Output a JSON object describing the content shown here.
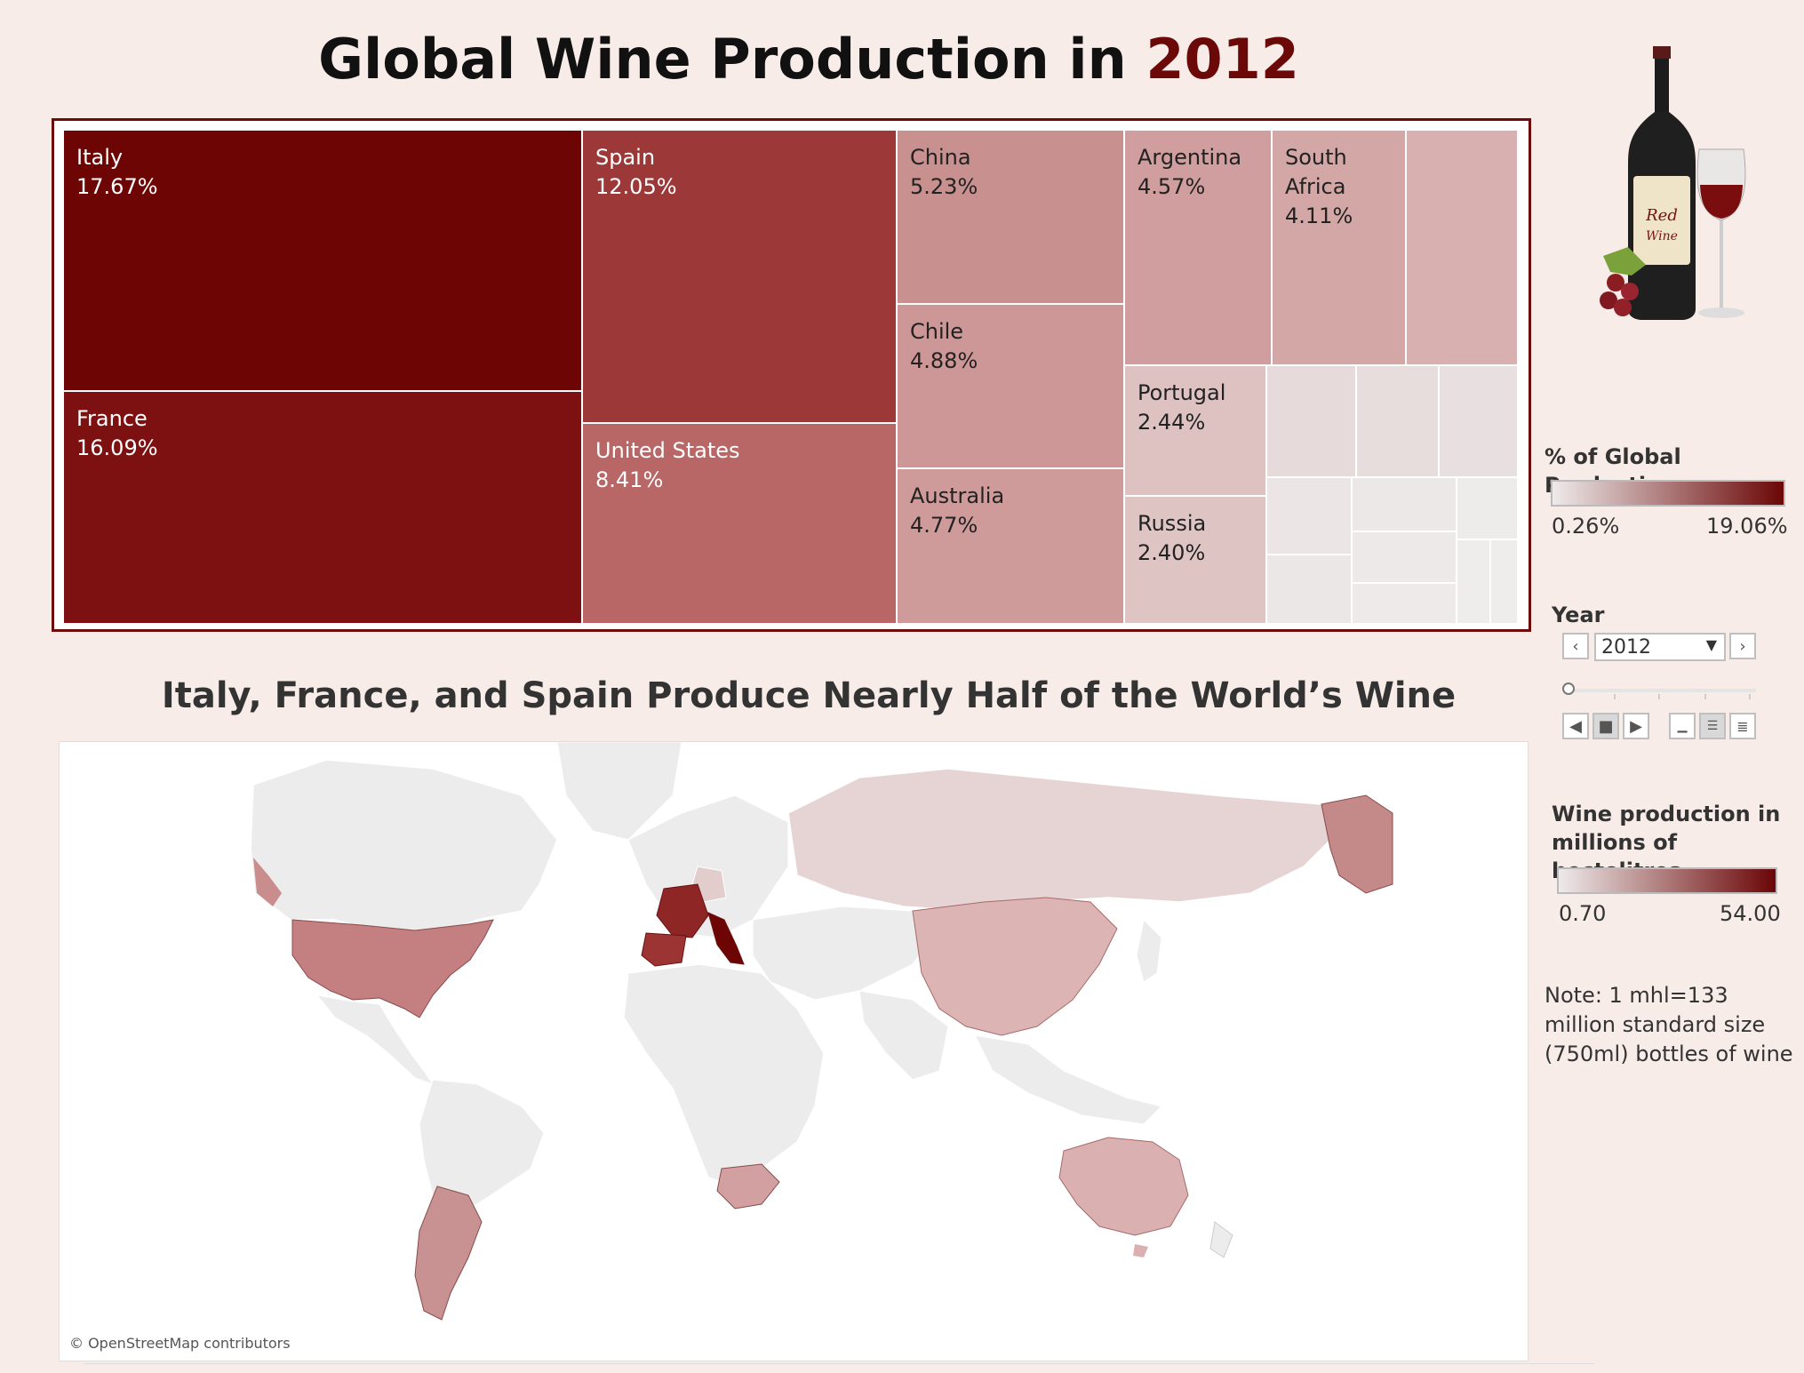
{
  "header": {
    "title_prefix": "Global Wine Production in ",
    "title_year": "2012"
  },
  "treemap": {
    "tiles": [
      {
        "id": "italy",
        "label": "Italy",
        "value": "17.67%"
      },
      {
        "id": "france",
        "label": "France",
        "value": "16.09%"
      },
      {
        "id": "spain",
        "label": "Spain",
        "value": "12.05%"
      },
      {
        "id": "usa",
        "label": "United States",
        "value": "8.41%"
      },
      {
        "id": "china",
        "label": "China",
        "value": "5.23%"
      },
      {
        "id": "chile",
        "label": "Chile",
        "value": "4.88%"
      },
      {
        "id": "australia",
        "label": "Australia",
        "value": "4.77%"
      },
      {
        "id": "argentina",
        "label": "Argentina",
        "value": "4.57%"
      },
      {
        "id": "south_africa",
        "label": "South",
        "label2": "Africa",
        "value": "4.11%"
      },
      {
        "id": "portugal",
        "label": "Portugal",
        "value": "2.44%"
      },
      {
        "id": "russia",
        "label": "Russia",
        "value": "2.40%"
      }
    ]
  },
  "map": {
    "title": "Italy, France, and Spain Produce Nearly Half of the World’s Wine",
    "credit": "© OpenStreetMap contributors"
  },
  "legend_share": {
    "title": "% of Global Production",
    "min": "0.26%",
    "max": "19.06%"
  },
  "year_filter": {
    "label": "Year",
    "selected": "2012"
  },
  "legend_volume": {
    "title_line1": "Wine production in",
    "title_line2": "millions of hectolitres",
    "min": "0.70",
    "max": "54.00"
  },
  "note": "Note: 1 mhl=133 million standard size (750ml) bottles of wine",
  "colors": {
    "dark": "#6b0606",
    "light": "#eeeaea",
    "accent": "#6b0909",
    "background": "#f8ece8"
  }
}
